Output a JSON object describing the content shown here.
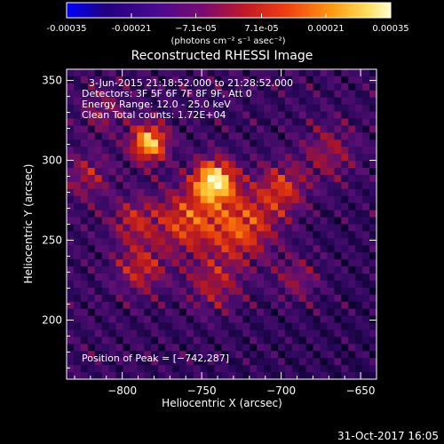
{
  "chart_data": {
    "type": "heatmap",
    "title": "Reconstructed RHESSI Image",
    "xlabel": "Heliocentric X (arcsec)",
    "ylabel": "Heliocentric Y (arcsec)",
    "xlim": [
      -835,
      -640
    ],
    "ylim": [
      163,
      357
    ],
    "xticks": [
      -800,
      -750,
      -700,
      -650
    ],
    "yticks": [
      200,
      250,
      300,
      350
    ],
    "colorbar": {
      "min": -0.00035,
      "max": 0.00035,
      "tick_values": [
        -0.00035,
        -0.00021,
        -7.1e-05,
        7.1e-05,
        0.00021,
        0.00035
      ],
      "tick_labels": [
        "-0.00035",
        "-0.00021",
        "−7.1e-05",
        "7.1e-05",
        "0.00021",
        "0.00035"
      ],
      "unit_label": "(photons cm⁻² s⁻¹ asec⁻²)",
      "colors": [
        "#0000ff",
        "#200060",
        "#5a0a80",
        "#a01030",
        "#e03010",
        "#ff8000",
        "#ffd040",
        "#ffffc0"
      ]
    },
    "annotations": [
      "3-Jun-2015 21:18:52.000 to 21:28:52.000",
      "Detectors: 3F 5F 6F 7F 8F 9F, Att 0",
      "Energy Range: 12.0 - 25.0 keV",
      "Clean    Total counts: 1.72E+04"
    ],
    "peak_label": "Position of Peak = [−742,287]",
    "peak": {
      "x": -742,
      "y": 287
    },
    "sources": [
      {
        "x": -742,
        "y": 287,
        "sigma": 9,
        "amp": 1.0
      },
      {
        "x": -783,
        "y": 311,
        "sigma": 8,
        "amp": 0.85
      },
      {
        "x": -725,
        "y": 258,
        "sigma": 15,
        "amp": 0.55
      },
      {
        "x": -760,
        "y": 262,
        "sigma": 14,
        "amp": 0.5
      },
      {
        "x": -700,
        "y": 282,
        "sigma": 11,
        "amp": 0.45
      },
      {
        "x": -793,
        "y": 262,
        "sigma": 10,
        "amp": 0.35
      },
      {
        "x": -788,
        "y": 232,
        "sigma": 11,
        "amp": 0.4
      },
      {
        "x": -742,
        "y": 222,
        "sigma": 12,
        "amp": 0.35
      },
      {
        "x": -670,
        "y": 305,
        "sigma": 12,
        "amp": 0.3
      },
      {
        "x": -822,
        "y": 290,
        "sigma": 10,
        "amp": 0.3
      },
      {
        "x": -812,
        "y": 330,
        "sigma": 9,
        "amp": 0.25
      },
      {
        "x": -690,
        "y": 225,
        "sigma": 10,
        "amp": 0.28
      }
    ]
  },
  "footer_date": "31-Oct-2017 16:05"
}
